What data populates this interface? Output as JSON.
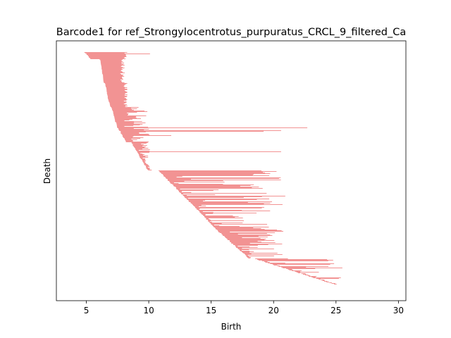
{
  "chart_data": {
    "type": "barcode",
    "title": "Barcode1 for ref_Strongylocentrotus_purpuratus_CRCL_9_filtered_Ca",
    "xlabel": "Birth",
    "ylabel": "Death",
    "xlim": [
      2.6,
      30.6
    ],
    "xticks": [
      5,
      10,
      15,
      20,
      25,
      30
    ],
    "xtick_labels": [
      "5",
      "10",
      "15",
      "20",
      "25",
      "30"
    ],
    "yticks_visible": false,
    "grid": false,
    "bar_color": "#f08080",
    "n_bars": 330,
    "segments": [
      {
        "name": "top-group",
        "count": 10,
        "starts": [
          4.9,
          5.3
        ],
        "ends": [
          8.0,
          8.3
        ],
        "long_end": 10.1
      },
      {
        "name": "block-a",
        "count": 34,
        "starts": [
          6.1,
          6.4
        ],
        "ends": [
          7.7,
          8.1
        ]
      },
      {
        "name": "block-b",
        "count": 34,
        "starts": [
          6.5,
          6.9
        ],
        "ends": [
          8.0,
          8.3
        ]
      },
      {
        "name": "small-group",
        "count": 25,
        "starts": [
          7.0,
          7.4
        ],
        "ends": [
          8.0,
          9.9
        ]
      },
      {
        "name": "mid-group",
        "count": 25,
        "starts": [
          7.4,
          8.2
        ],
        "ends": [
          8.6,
          10.1
        ],
        "long_ends": [
          22.7,
          20.6,
          19.2,
          11.8
        ]
      },
      {
        "name": "sparse-column",
        "count": 40,
        "starts": [
          8.6,
          9.9
        ],
        "ends": [
          8.9,
          10.1
        ],
        "long_end": 20.6
      },
      {
        "name": "lower-group",
        "count": 80,
        "starts": [
          10.8,
          15.2
        ],
        "ends": [
          11.5,
          21.0
        ]
      },
      {
        "name": "lower-mid",
        "count": 45,
        "starts": [
          15.2,
          18.0
        ],
        "ends": [
          16.0,
          20.8
        ]
      },
      {
        "name": "tail",
        "count": 37,
        "starts": [
          18.5,
          24.8
        ],
        "ends": [
          19.0,
          26.0
        ],
        "long_end": 22.6
      }
    ]
  }
}
